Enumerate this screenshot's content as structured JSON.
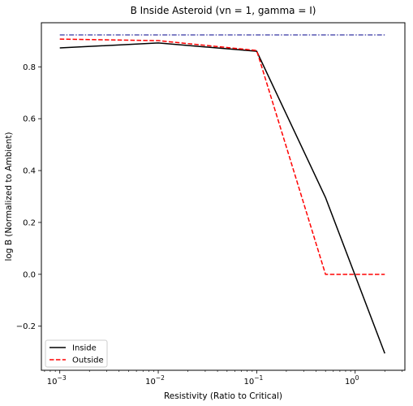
{
  "chart_data": {
    "type": "line",
    "title": "B Inside Asteroid (vn = 1, gamma = I)",
    "xlabel": "Resistivity (Ratio to Critical)",
    "ylabel": "log B (Normalized to Ambient)",
    "xscale": "log",
    "xlim": [
      0.00065,
      3.2
    ],
    "ylim": [
      -0.37,
      0.97
    ],
    "grid": false,
    "legend_position": "lower-left",
    "x_ticks": [
      {
        "value": 0.001,
        "label": "10",
        "exp": "−3"
      },
      {
        "value": 0.01,
        "label": "10",
        "exp": "−2"
      },
      {
        "value": 0.1,
        "label": "10",
        "exp": "−1"
      },
      {
        "value": 1,
        "label": "10",
        "exp": "0"
      }
    ],
    "y_ticks": [
      {
        "value": -0.2,
        "label": "−0.2"
      },
      {
        "value": 0.0,
        "label": "0.0"
      },
      {
        "value": 0.2,
        "label": "0.2"
      },
      {
        "value": 0.4,
        "label": "0.4"
      },
      {
        "value": 0.6,
        "label": "0.6"
      },
      {
        "value": 0.8,
        "label": "0.8"
      }
    ],
    "series": [
      {
        "name": "Inside",
        "color": "#000000",
        "dash": "solid",
        "x": [
          0.001,
          0.01,
          0.1,
          0.5,
          2
        ],
        "y": [
          0.873,
          0.892,
          0.86,
          0.296,
          -0.305
        ]
      },
      {
        "name": "Outside",
        "color": "#ff0000",
        "dash": "dashed",
        "x": [
          0.001,
          0.01,
          0.1,
          0.5,
          2
        ],
        "y": [
          0.907,
          0.901,
          0.863,
          0.0,
          0.0
        ]
      }
    ],
    "reference_line": {
      "y": 0.923,
      "color": "#00008b",
      "dash": "dashdot"
    }
  }
}
